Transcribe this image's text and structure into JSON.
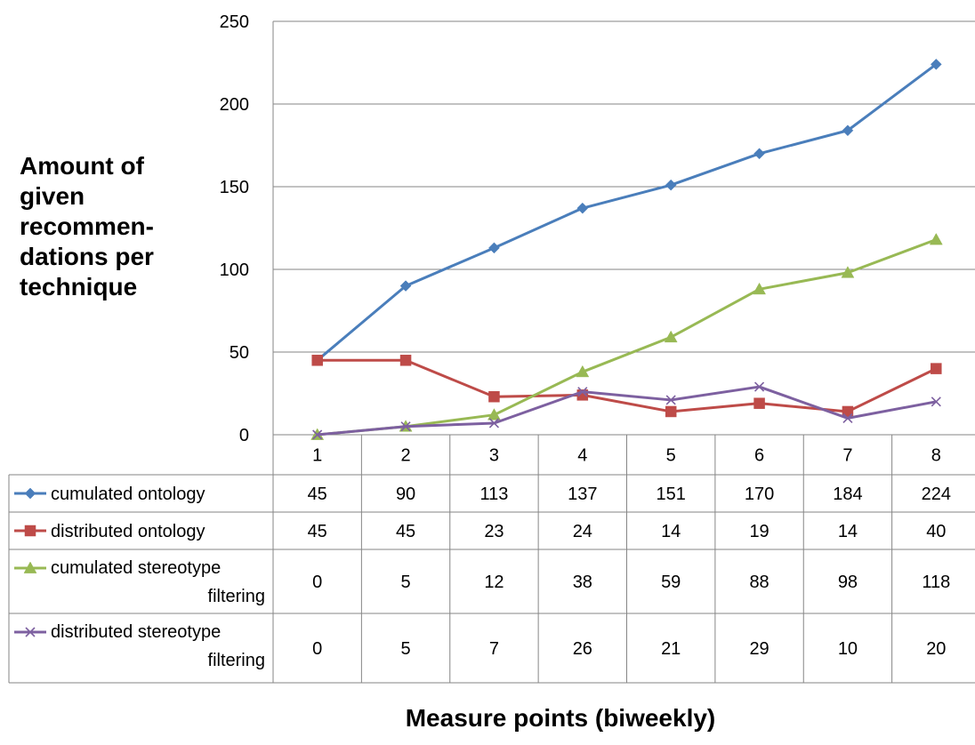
{
  "chart_data": {
    "type": "line",
    "title": "",
    "ylabel_lines": [
      "Amount of",
      "given",
      "recommen-",
      "dations per",
      "technique"
    ],
    "xlabel": "Measure points (biweekly)",
    "ylim": [
      0,
      250
    ],
    "yticks": [
      0,
      50,
      100,
      150,
      200,
      250
    ],
    "categories": [
      "1",
      "2",
      "3",
      "4",
      "5",
      "6",
      "7",
      "8"
    ],
    "grid": "horizontal",
    "legend": "data-table",
    "series": [
      {
        "name_lines": [
          "cumulated ontology"
        ],
        "color": "#4a7ebb",
        "marker": "diamond",
        "values": [
          45,
          90,
          113,
          137,
          151,
          170,
          184,
          224
        ]
      },
      {
        "name_lines": [
          "distributed ontology"
        ],
        "color": "#be4b48",
        "marker": "square",
        "values": [
          45,
          45,
          23,
          24,
          14,
          19,
          14,
          40
        ]
      },
      {
        "name_lines": [
          "cumulated stereotype",
          "filtering"
        ],
        "color": "#98b954",
        "marker": "triangle",
        "values": [
          0,
          5,
          12,
          38,
          59,
          88,
          98,
          118
        ]
      },
      {
        "name_lines": [
          "distributed stereotype",
          "filtering"
        ],
        "color": "#7d60a0",
        "marker": "x",
        "values": [
          0,
          5,
          7,
          26,
          21,
          29,
          10,
          20
        ]
      }
    ]
  }
}
